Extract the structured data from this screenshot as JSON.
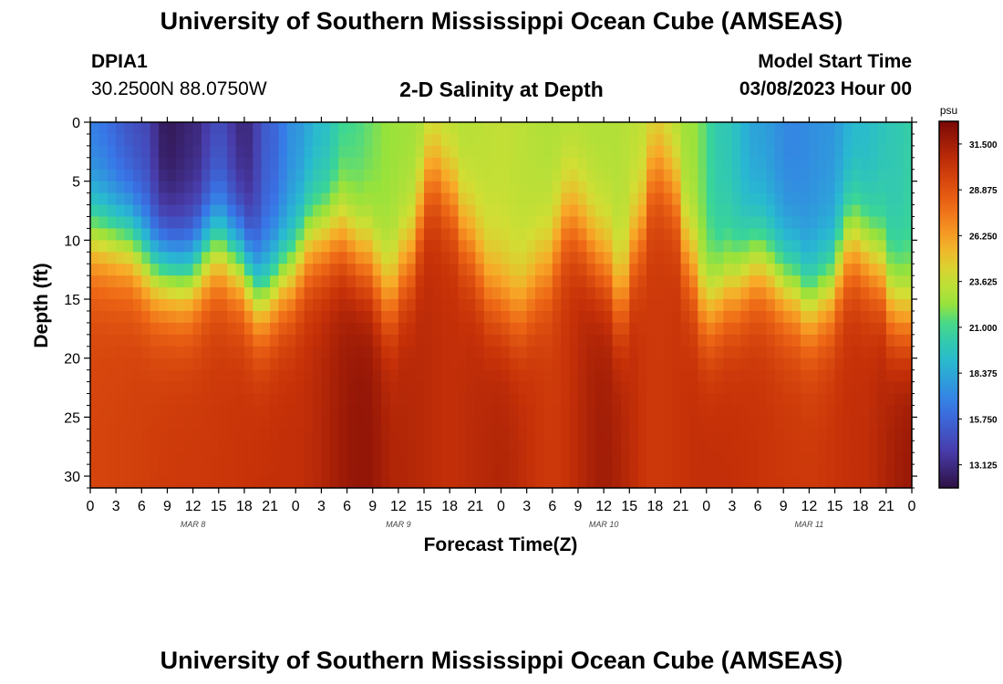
{
  "header": {
    "title": "University of Southern Mississippi Ocean Cube (AMSEAS)",
    "station_id": "DPIA1",
    "station_coords": "30.2500N  88.0750W",
    "plot_title": "2-D Salinity at Depth",
    "model_start_label": "Model Start Time",
    "model_start_value": "03/08/2023 Hour 00"
  },
  "footer": {
    "title": "University of Southern Mississippi Ocean Cube (AMSEAS)"
  },
  "chart_data": {
    "type": "heatmap",
    "title": "2-D Salinity at Depth",
    "xlabel": "Forecast Time(Z)",
    "ylabel": "Depth (ft)",
    "x_hours": [
      0,
      96
    ],
    "x_tick_step_hours": 3,
    "x_tick_labels": [
      "0",
      "3",
      "6",
      "9",
      "12",
      "15",
      "18",
      "21",
      "0",
      "3",
      "6",
      "9",
      "12",
      "15",
      "18",
      "21",
      "0",
      "3",
      "6",
      "9",
      "12",
      "15",
      "18",
      "21",
      "0",
      "3",
      "6",
      "9",
      "12",
      "15",
      "18",
      "21",
      "0"
    ],
    "day_labels": [
      {
        "label": "MAR 8",
        "hour": 12
      },
      {
        "label": "MAR 9",
        "hour": 36
      },
      {
        "label": "MAR 10",
        "hour": 60
      },
      {
        "label": "MAR 11",
        "hour": 84
      }
    ],
    "ylim": [
      0,
      31
    ],
    "y_ticks": [
      0,
      5,
      10,
      15,
      20,
      25,
      30
    ],
    "colorbar": {
      "unit": "psu",
      "vmin": 11.8,
      "vmax": 32.8,
      "tick_values": [
        31.5,
        28.875,
        26.25,
        23.625,
        21.0,
        18.375,
        15.75,
        13.125
      ],
      "tick_labels": [
        "31.500",
        "28.875",
        "26.250",
        "23.625",
        "21.000",
        "18.375",
        "15.750",
        "13.125"
      ]
    },
    "halocline_depth_ft": [
      [
        0,
        9.5
      ],
      [
        4,
        10.0
      ],
      [
        8,
        12.5
      ],
      [
        11,
        13.0
      ],
      [
        15,
        10.5
      ],
      [
        17,
        11.5
      ],
      [
        20,
        14.8
      ],
      [
        23,
        13.0
      ],
      [
        26,
        10.0
      ],
      [
        29,
        9.5
      ],
      [
        32,
        11.5
      ],
      [
        35,
        15.0
      ],
      [
        37,
        12.0
      ],
      [
        40,
        4.0
      ],
      [
        42,
        6.0
      ],
      [
        44,
        10.0
      ],
      [
        47,
        14.5
      ],
      [
        50,
        16.0
      ],
      [
        53,
        13.0
      ],
      [
        56,
        8.0
      ],
      [
        60,
        12.0
      ],
      [
        62,
        15.5
      ],
      [
        64,
        10.0
      ],
      [
        66,
        3.5
      ],
      [
        68,
        5.0
      ],
      [
        70,
        12.0
      ],
      [
        72,
        16.0
      ],
      [
        75,
        14.0
      ],
      [
        78,
        12.0
      ],
      [
        82,
        14.0
      ],
      [
        84,
        15.5
      ],
      [
        86,
        14.5
      ],
      [
        89,
        10.0
      ],
      [
        92,
        12.0
      ],
      [
        94,
        16.0
      ],
      [
        96,
        16.5
      ]
    ],
    "surface_salinity_psu": [
      [
        0,
        16.5
      ],
      [
        6,
        14.5
      ],
      [
        9,
        12.2
      ],
      [
        12,
        12.8
      ],
      [
        15,
        14.5
      ],
      [
        18,
        12.8
      ],
      [
        21,
        15.5
      ],
      [
        24,
        17.5
      ],
      [
        27,
        19.0
      ],
      [
        30,
        21.0
      ],
      [
        36,
        22.5
      ],
      [
        42,
        23.0
      ],
      [
        48,
        23.5
      ],
      [
        54,
        23.0
      ],
      [
        60,
        23.0
      ],
      [
        66,
        23.5
      ],
      [
        70,
        22.5
      ],
      [
        74,
        20.0
      ],
      [
        78,
        18.0
      ],
      [
        82,
        17.0
      ],
      [
        86,
        17.5
      ],
      [
        90,
        19.0
      ],
      [
        94,
        20.0
      ],
      [
        96,
        20.5
      ]
    ],
    "bottom_salinity_psu": [
      [
        0,
        29.5
      ],
      [
        12,
        30.0
      ],
      [
        24,
        30.5
      ],
      [
        32,
        32.0
      ],
      [
        36,
        31.0
      ],
      [
        42,
        30.5
      ],
      [
        48,
        31.0
      ],
      [
        54,
        30.0
      ],
      [
        60,
        31.5
      ],
      [
        66,
        30.0
      ],
      [
        72,
        30.5
      ],
      [
        84,
        30.0
      ],
      [
        90,
        30.5
      ],
      [
        96,
        31.8
      ]
    ]
  }
}
